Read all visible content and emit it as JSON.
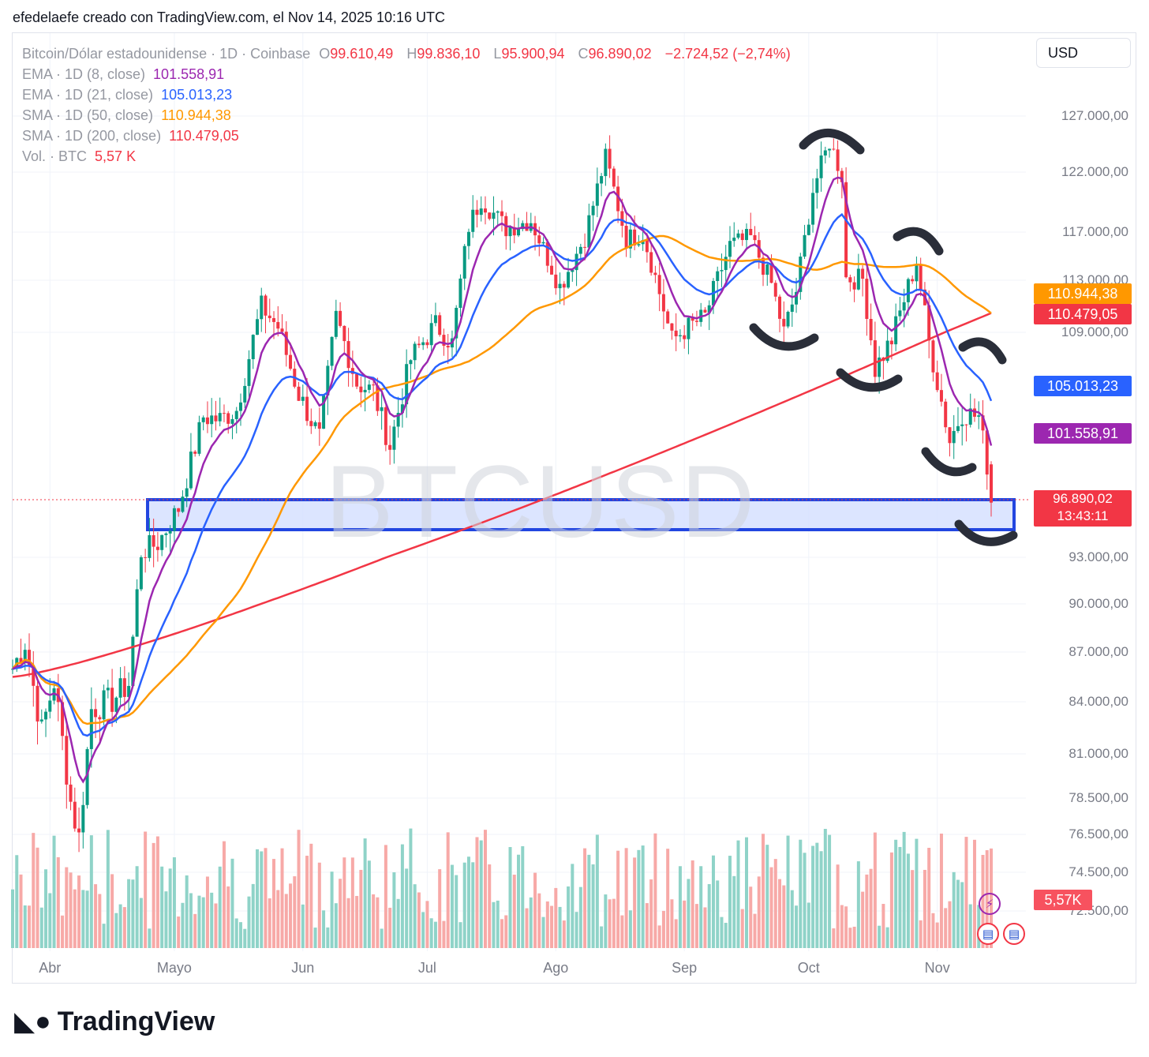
{
  "header": {
    "author_line": "efedelaefe creado con TradingView.com, el Nov 14, 2025 10:16 UTC"
  },
  "legend": {
    "symbol": "Bitcoin/Dólar estadounidense · 1D · Coinbase",
    "open_label": "O",
    "open": "99.610,49",
    "high_label": "H",
    "high": "99.836,10",
    "low_label": "L",
    "low": "95.900,94",
    "close_label": "C",
    "close": "96.890,02",
    "change": "−2.724,52 (−2,74%)",
    "indicators": [
      {
        "label": "EMA · 1D (8, close)",
        "value": "101.558,91",
        "color": "#9c27b0"
      },
      {
        "label": "EMA · 1D (21, close)",
        "value": "105.013,23",
        "color": "#2962ff"
      },
      {
        "label": "SMA · 1D (50, close)",
        "value": "110.944,38",
        "color": "#ff9800"
      },
      {
        "label": "SMA · 1D (200, close)",
        "value": "110.479,05",
        "color": "#f23645"
      },
      {
        "label": "Vol. · BTC",
        "value": "5,57 K",
        "color": "#f23645"
      }
    ]
  },
  "currency": "USD",
  "watermark": "BTCUSD",
  "brand": "TradingView",
  "colors": {
    "up": "#089981",
    "down": "#f23645",
    "zone_fill": "#d6e0ff",
    "zone_border": "#2246e0",
    "annotation": "#2a2e39"
  },
  "chart_data": {
    "type": "candlestick",
    "y_axis_labels": [
      "127.000,00",
      "122.000,00",
      "117.000,00",
      "113.000,00",
      "109.000,00",
      "93.000,00",
      "90.000,00",
      "87.000,00",
      "84.000,00",
      "81.000,00",
      "78.500,00",
      "76.500,00",
      "74.500,00",
      "72.500,00"
    ],
    "y_axis_values": [
      127000,
      122000,
      117000,
      113000,
      109000,
      93000,
      90000,
      87000,
      84000,
      81000,
      78500,
      76500,
      74500,
      72500
    ],
    "x_axis_labels": [
      "Abr",
      "Mayo",
      "Jun",
      "Jul",
      "Ago",
      "Sep",
      "Oct",
      "Nov"
    ],
    "price_tags": [
      {
        "label": "110.944,38",
        "color": "#ff9800",
        "value": 110944.38
      },
      {
        "label": "110.479,05",
        "color": "#f23645",
        "value": 110479.05
      },
      {
        "label": "105.013,23",
        "color": "#2962ff",
        "value": 105013.23
      },
      {
        "label": "101.558,91",
        "color": "#9c27b0",
        "value": 101558.91
      }
    ],
    "last_price": {
      "label": "96.890,02",
      "countdown": "13:43:11",
      "value": 96890.02
    },
    "volume_tag": "5,57K",
    "support_zone": {
      "from": 94700,
      "to": 96800
    },
    "close_series": [
      {
        "date": "2025-03-23",
        "close": 86000
      },
      {
        "date": "2025-03-26",
        "close": 87600
      },
      {
        "date": "2025-03-30",
        "close": 82300
      },
      {
        "date": "2025-04-02",
        "close": 85200
      },
      {
        "date": "2025-04-06",
        "close": 78300
      },
      {
        "date": "2025-04-08",
        "close": 76300
      },
      {
        "date": "2025-04-11",
        "close": 83600
      },
      {
        "date": "2025-04-16",
        "close": 84100
      },
      {
        "date": "2025-04-20",
        "close": 85100
      },
      {
        "date": "2025-04-23",
        "close": 93400
      },
      {
        "date": "2025-04-27",
        "close": 94000
      },
      {
        "date": "2025-05-02",
        "close": 96500
      },
      {
        "date": "2025-05-08",
        "close": 103000
      },
      {
        "date": "2025-05-12",
        "close": 102800
      },
      {
        "date": "2025-05-16",
        "close": 103500
      },
      {
        "date": "2025-05-22",
        "close": 111000
      },
      {
        "date": "2025-05-26",
        "close": 109400
      },
      {
        "date": "2025-05-31",
        "close": 104600
      },
      {
        "date": "2025-06-05",
        "close": 101500
      },
      {
        "date": "2025-06-09",
        "close": 110200
      },
      {
        "date": "2025-06-14",
        "close": 105400
      },
      {
        "date": "2025-06-18",
        "close": 104800
      },
      {
        "date": "2025-06-22",
        "close": 100900
      },
      {
        "date": "2025-06-27",
        "close": 107100
      },
      {
        "date": "2025-07-03",
        "close": 109600
      },
      {
        "date": "2025-07-07",
        "close": 108200
      },
      {
        "date": "2025-07-11",
        "close": 117500
      },
      {
        "date": "2025-07-14",
        "close": 119800
      },
      {
        "date": "2025-07-20",
        "close": 117300
      },
      {
        "date": "2025-07-26",
        "close": 118000
      },
      {
        "date": "2025-08-02",
        "close": 112500
      },
      {
        "date": "2025-08-08",
        "close": 116600
      },
      {
        "date": "2025-08-13",
        "close": 123300
      },
      {
        "date": "2025-08-18",
        "close": 116400
      },
      {
        "date": "2025-08-22",
        "close": 116900
      },
      {
        "date": "2025-08-29",
        "close": 108400
      },
      {
        "date": "2025-09-01",
        "close": 109200
      },
      {
        "date": "2025-09-06",
        "close": 110200
      },
      {
        "date": "2025-09-12",
        "close": 115900
      },
      {
        "date": "2025-09-17",
        "close": 116500
      },
      {
        "date": "2025-09-22",
        "close": 112700
      },
      {
        "date": "2025-09-25",
        "close": 109000
      },
      {
        "date": "2025-09-28",
        "close": 112200
      },
      {
        "date": "2025-10-02",
        "close": 120500
      },
      {
        "date": "2025-10-06",
        "close": 124700
      },
      {
        "date": "2025-10-09",
        "close": 121700
      },
      {
        "date": "2025-10-10",
        "close": 113200
      },
      {
        "date": "2025-10-14",
        "close": 113100
      },
      {
        "date": "2025-10-17",
        "close": 106400
      },
      {
        "date": "2025-10-21",
        "close": 108500
      },
      {
        "date": "2025-10-27",
        "close": 114500
      },
      {
        "date": "2025-10-30",
        "close": 108300
      },
      {
        "date": "2025-11-04",
        "close": 101300
      },
      {
        "date": "2025-11-07",
        "close": 103300
      },
      {
        "date": "2025-11-11",
        "close": 103000
      },
      {
        "date": "2025-11-13",
        "close": 99600
      },
      {
        "date": "2025-11-14",
        "close": 96890
      }
    ]
  }
}
